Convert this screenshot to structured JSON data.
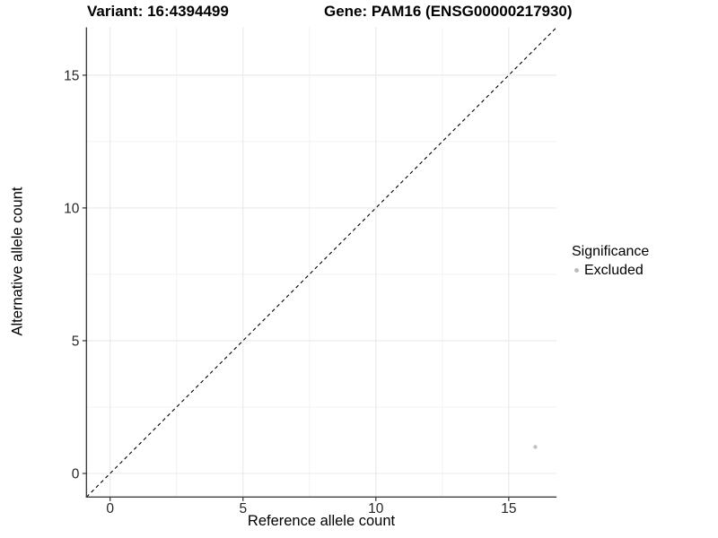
{
  "titles": {
    "variant": "Variant: 16:4394499",
    "gene": "Gene: PAM16 (ENSG00000217930)"
  },
  "axes": {
    "x_label": "Reference allele count",
    "y_label": "Alternative allele count"
  },
  "chart_data": {
    "type": "scatter",
    "title": "Variant: 16:4394499    Gene: PAM16 (ENSG00000217930)",
    "xlabel": "Reference allele count",
    "ylabel": "Alternative allele count",
    "xlim": [
      -0.89,
      16.8
    ],
    "ylim": [
      -0.89,
      16.8
    ],
    "x_ticks": [
      0,
      5,
      10,
      15
    ],
    "y_ticks": [
      0,
      5,
      10,
      15
    ],
    "minor_gridlines": [
      2.5,
      7.5,
      12.5
    ],
    "grid": "on",
    "legend_position": "right",
    "identity_line": {
      "style": "dashed",
      "color": "#000000",
      "from": [
        -0.89,
        -0.89
      ],
      "to": [
        16.8,
        16.8
      ]
    },
    "series": [
      {
        "name": "Excluded",
        "color": "#c0c0c0",
        "points": [
          [
            16,
            1
          ]
        ]
      }
    ],
    "legend": {
      "title": "Significance",
      "entries": [
        {
          "label": "Excluded",
          "color": "#bdbdbd"
        }
      ]
    }
  },
  "colors": {
    "background": "#ffffff",
    "axis_line": "#3f3f3f",
    "tick_mark": "#333333",
    "tick_label": "#262626",
    "grid_major": "#e9e9e9",
    "grid_minor": "#f3f3f3",
    "identity_line": "#000000",
    "point": "#c0c0c0"
  }
}
